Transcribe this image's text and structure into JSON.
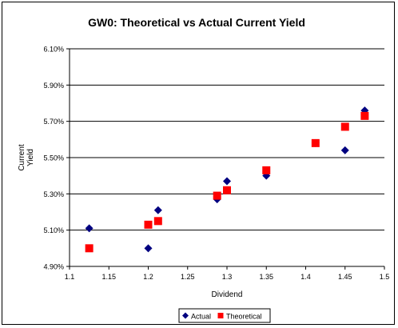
{
  "chart_data": {
    "type": "scatter",
    "title": "GW0: Theoretical vs Actual Current Yield",
    "xlabel": "Dividend",
    "ylabel_lines": [
      "Current",
      "Yield"
    ],
    "xlim": [
      1.1,
      1.5
    ],
    "ylim": [
      4.9,
      6.1
    ],
    "x_ticks": [
      1.1,
      1.15,
      1.2,
      1.25,
      1.3,
      1.35,
      1.4,
      1.45,
      1.5
    ],
    "x_tick_labels": [
      "1.1",
      "1.15",
      "1.2",
      "1.25",
      "1.3",
      "1.35",
      "1.4",
      "1.45",
      "1.5"
    ],
    "y_ticks": [
      4.9,
      5.1,
      5.3,
      5.5,
      5.7,
      5.9,
      6.1
    ],
    "y_tick_labels": [
      "4.90%",
      "5.10%",
      "5.30%",
      "5.50%",
      "5.70%",
      "5.90%",
      "6.10%"
    ],
    "grid": "horizontal",
    "legend_position": "bottom",
    "series": [
      {
        "name": "Actual",
        "marker": "diamond",
        "color": "#000080",
        "points": [
          {
            "x": 1.125,
            "y": 5.11
          },
          {
            "x": 1.2,
            "y": 5.0
          },
          {
            "x": 1.2125,
            "y": 5.21
          },
          {
            "x": 1.2875,
            "y": 5.27
          },
          {
            "x": 1.3,
            "y": 5.37
          },
          {
            "x": 1.35,
            "y": 5.4
          },
          {
            "x": 1.4125,
            "y": 5.58
          },
          {
            "x": 1.45,
            "y": 5.54
          },
          {
            "x": 1.475,
            "y": 5.76
          }
        ]
      },
      {
        "name": "Theoretical",
        "marker": "square",
        "color": "#ff0000",
        "points": [
          {
            "x": 1.125,
            "y": 5.0
          },
          {
            "x": 1.2,
            "y": 5.13
          },
          {
            "x": 1.2125,
            "y": 5.15
          },
          {
            "x": 1.2875,
            "y": 5.29
          },
          {
            "x": 1.3,
            "y": 5.32
          },
          {
            "x": 1.35,
            "y": 5.43
          },
          {
            "x": 1.4125,
            "y": 5.58
          },
          {
            "x": 1.45,
            "y": 5.67
          },
          {
            "x": 1.475,
            "y": 5.73
          }
        ]
      }
    ]
  }
}
